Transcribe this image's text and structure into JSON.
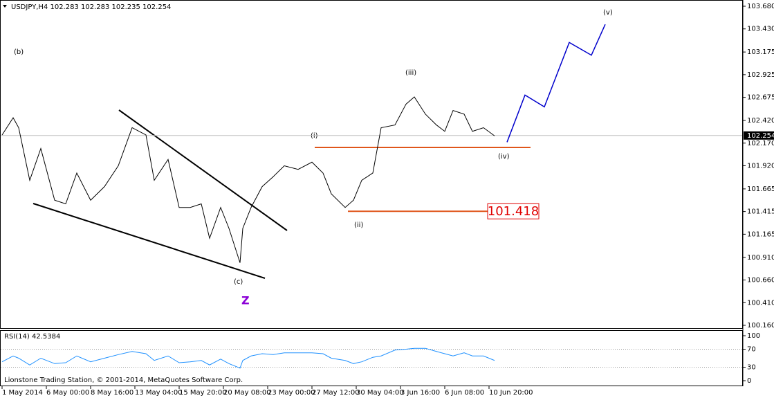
{
  "chart_data": [
    {
      "type": "line",
      "title": "USDJPY,H4  102.283 102.283 102.235 102.254",
      "x": [
        0,
        4,
        6,
        10,
        14,
        19,
        23,
        27,
        32,
        37,
        42,
        47,
        52,
        55,
        60,
        64,
        68,
        72,
        75,
        79,
        82,
        86,
        87,
        90,
        94,
        98,
        102,
        107,
        112,
        116,
        119,
        124,
        127,
        130,
        134,
        137,
        142,
        146,
        149,
        153,
        157,
        160,
        163,
        167,
        170,
        174,
        178
      ],
      "series": [
        {
          "name": "USDJPY",
          "color": "#000000",
          "x": [
            0,
            4,
            6,
            10,
            14,
            19,
            23,
            27,
            32,
            37,
            42,
            47,
            52,
            55,
            60,
            64,
            68,
            72,
            75,
            79,
            82,
            86,
            87,
            90,
            94,
            98,
            102,
            107,
            112,
            116,
            119,
            124,
            127,
            130,
            134,
            137,
            142,
            146,
            149,
            153,
            157,
            160,
            163,
            167,
            170,
            174,
            178
          ],
          "values": [
            102.26,
            102.45,
            102.34,
            101.76,
            102.11,
            101.54,
            101.5,
            101.84,
            101.54,
            101.69,
            101.92,
            102.34,
            102.26,
            101.76,
            101.99,
            101.46,
            101.46,
            101.5,
            101.12,
            101.46,
            101.23,
            100.85,
            101.23,
            101.46,
            101.69,
            101.8,
            101.92,
            101.88,
            101.96,
            101.84,
            101.61,
            101.46,
            101.54,
            101.76,
            101.84,
            102.34,
            102.37,
            102.6,
            102.68,
            102.49,
            102.37,
            102.3,
            102.53,
            102.49,
            102.3,
            102.34,
            102.25
          ]
        },
        {
          "name": "projection",
          "color": "#0000cc",
          "x": [
            182.5,
            189,
            196,
            205,
            213,
            218
          ],
          "values": [
            102.18,
            102.7,
            102.57,
            103.28,
            103.14,
            103.48
          ]
        }
      ],
      "current_price": 102.254,
      "level": 101.418,
      "level_label": "101.418",
      "annotations": [
        "(b)",
        "(i)",
        "(iii)",
        "(iv)",
        "(ii)",
        "(c)",
        "Z",
        "(v)"
      ],
      "xlim": [
        0,
        267.5
      ],
      "xticks": [
        {
          "value": 0,
          "label": "1 May 2014"
        },
        {
          "value": 16,
          "label": "6 May 00:00"
        },
        {
          "value": 32,
          "label": "8 May 16:00"
        },
        {
          "value": 48,
          "label": "13 May 04:00"
        },
        {
          "value": 64,
          "label": "15 May 20:00"
        },
        {
          "value": 80,
          "label": "20 May 08:00"
        },
        {
          "value": 96,
          "label": "23 May 00:00"
        },
        {
          "value": 112,
          "label": "27 May 12:00"
        },
        {
          "value": 128,
          "label": "30 May 04:00"
        },
        {
          "value": 144,
          "label": "3 Jun 16:00"
        },
        {
          "value": 160,
          "label": "6 Jun 08:00"
        },
        {
          "value": 176,
          "label": "10 Jun 20:00"
        }
      ],
      "ylim": [
        100.16,
        103.68
      ],
      "yticks": [
        {
          "value": 103.68,
          "label": "103.680"
        },
        {
          "value": 103.43,
          "label": "103.430"
        },
        103.175,
        102.925,
        102.675,
        {
          "value": 102.42,
          "label": "102.420"
        },
        {
          "value": 102.17,
          "label": "102.170"
        },
        {
          "value": 101.92,
          "label": "101.920"
        },
        101.665,
        101.415,
        101.165,
        {
          "value": 100.91,
          "label": "100.910"
        },
        {
          "value": 100.66,
          "label": "100.660"
        },
        {
          "value": 100.41,
          "label": "100.410"
        },
        {
          "value": 100.16,
          "label": "100.160"
        }
      ]
    },
    {
      "type": "line",
      "title": "RSI(14) 42.5384",
      "footer": "Lionstone Trading Station, © 2001-2014, MetaQuotes Software Corp.",
      "series": [
        {
          "name": "RSI(14)",
          "color": "#1e90ff",
          "x": [
            0,
            4,
            6,
            10,
            14,
            19,
            23,
            27,
            32,
            37,
            42,
            47,
            52,
            55,
            60,
            64,
            68,
            72,
            75,
            79,
            82,
            86,
            87,
            90,
            94,
            98,
            102,
            107,
            112,
            116,
            119,
            124,
            127,
            130,
            134,
            137,
            142,
            146,
            149,
            153,
            157,
            160,
            163,
            167,
            170,
            174,
            178
          ],
          "values": [
            42,
            55,
            50,
            35,
            50,
            38,
            40,
            55,
            42,
            50,
            58,
            65,
            60,
            45,
            55,
            40,
            42,
            45,
            35,
            48,
            38,
            28,
            45,
            55,
            60,
            58,
            62,
            62,
            62,
            60,
            50,
            45,
            38,
            42,
            52,
            55,
            68,
            70,
            72,
            72,
            65,
            60,
            55,
            62,
            55,
            55,
            45
          ]
        }
      ],
      "ylim": [
        0,
        100
      ],
      "yticks": [
        100,
        70,
        30,
        0
      ]
    }
  ]
}
